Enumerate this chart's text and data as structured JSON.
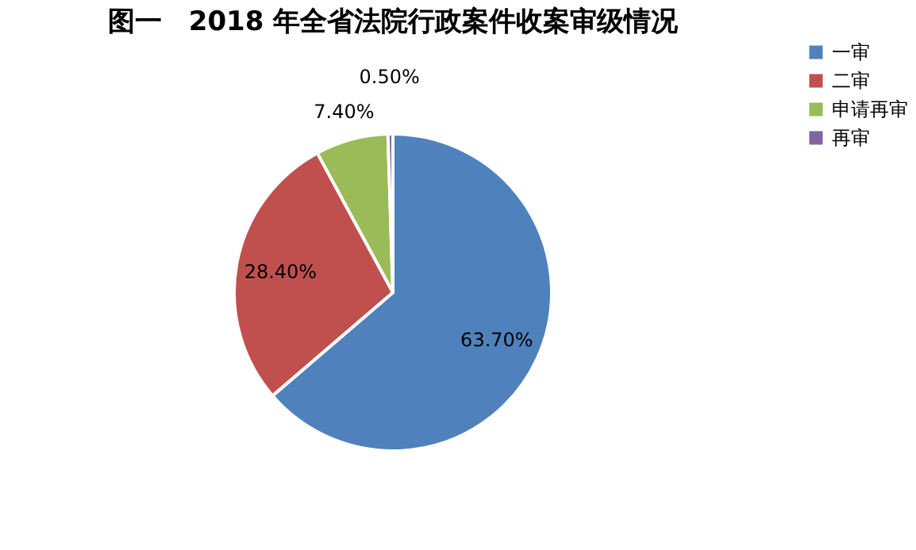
{
  "chart_data": {
    "type": "pie",
    "title": "图一　2018 年全省法院行政案件收案审级情况",
    "categories": [
      "一审",
      "二审",
      "申请再审",
      "再审"
    ],
    "values": [
      63.7,
      28.4,
      7.4,
      0.5
    ],
    "colors": [
      "#4f81bd",
      "#c0504d",
      "#9bbb59",
      "#8064a2"
    ],
    "value_labels": [
      "63.70%",
      "28.40%",
      "7.40%",
      "0.50%"
    ],
    "legend": "right"
  }
}
